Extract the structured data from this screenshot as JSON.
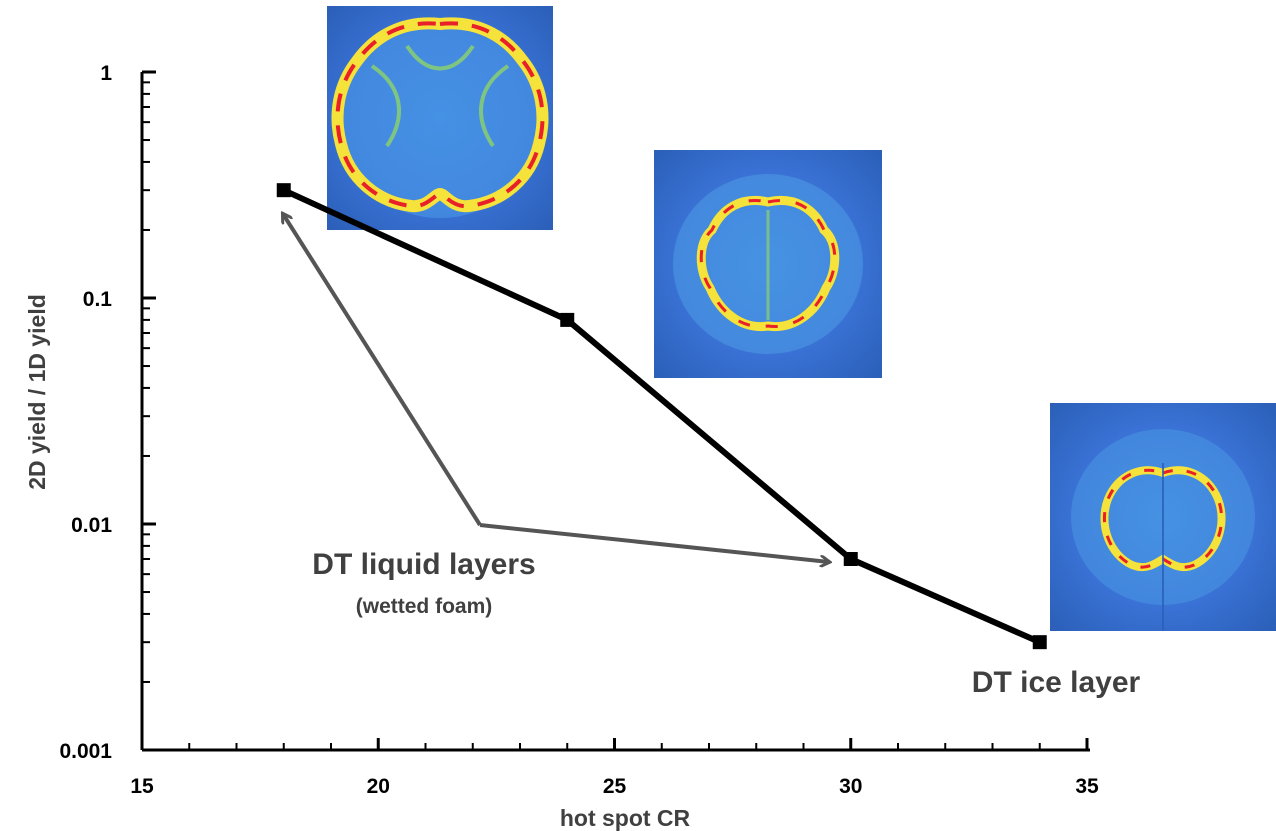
{
  "chart_data": {
    "type": "line",
    "xlabel": "hot spot CR",
    "ylabel": "2D yield / 1D yield",
    "xlim": [
      15,
      35
    ],
    "ylim": [
      0.001,
      1
    ],
    "yscale": "log",
    "xticks": [
      "15",
      "20",
      "25",
      "30",
      "35"
    ],
    "yticks": [
      "0.001",
      "0.01",
      "0.1",
      "1"
    ],
    "series": [
      {
        "x": [
          18,
          24,
          30,
          34
        ],
        "y": [
          0.3,
          0.08,
          0.007,
          0.003
        ],
        "color": "#000000",
        "marker": "square"
      }
    ],
    "annotations": [
      {
        "text": "DT liquid layers",
        "detail": "(wetted foam)",
        "arrows_to": [
          [
            18,
            0.3
          ],
          [
            30,
            0.007
          ]
        ]
      },
      {
        "text": "DT ice layer"
      }
    ],
    "inset_images": [
      {
        "subject": "density-map-wetted-foam-cr18",
        "near": [
          18,
          0.3
        ]
      },
      {
        "subject": "density-map-wetted-foam-cr24",
        "near": [
          24,
          0.08
        ]
      },
      {
        "subject": "density-map-ice-layer-cr34",
        "near": [
          34,
          0.003
        ]
      }
    ],
    "colors": {
      "line": "#000000",
      "annotation": "#404040",
      "inset_bg": "#3a73d6",
      "inset_ring_hot": "#e8202a",
      "inset_ring_warm": "#f5e23a"
    }
  }
}
